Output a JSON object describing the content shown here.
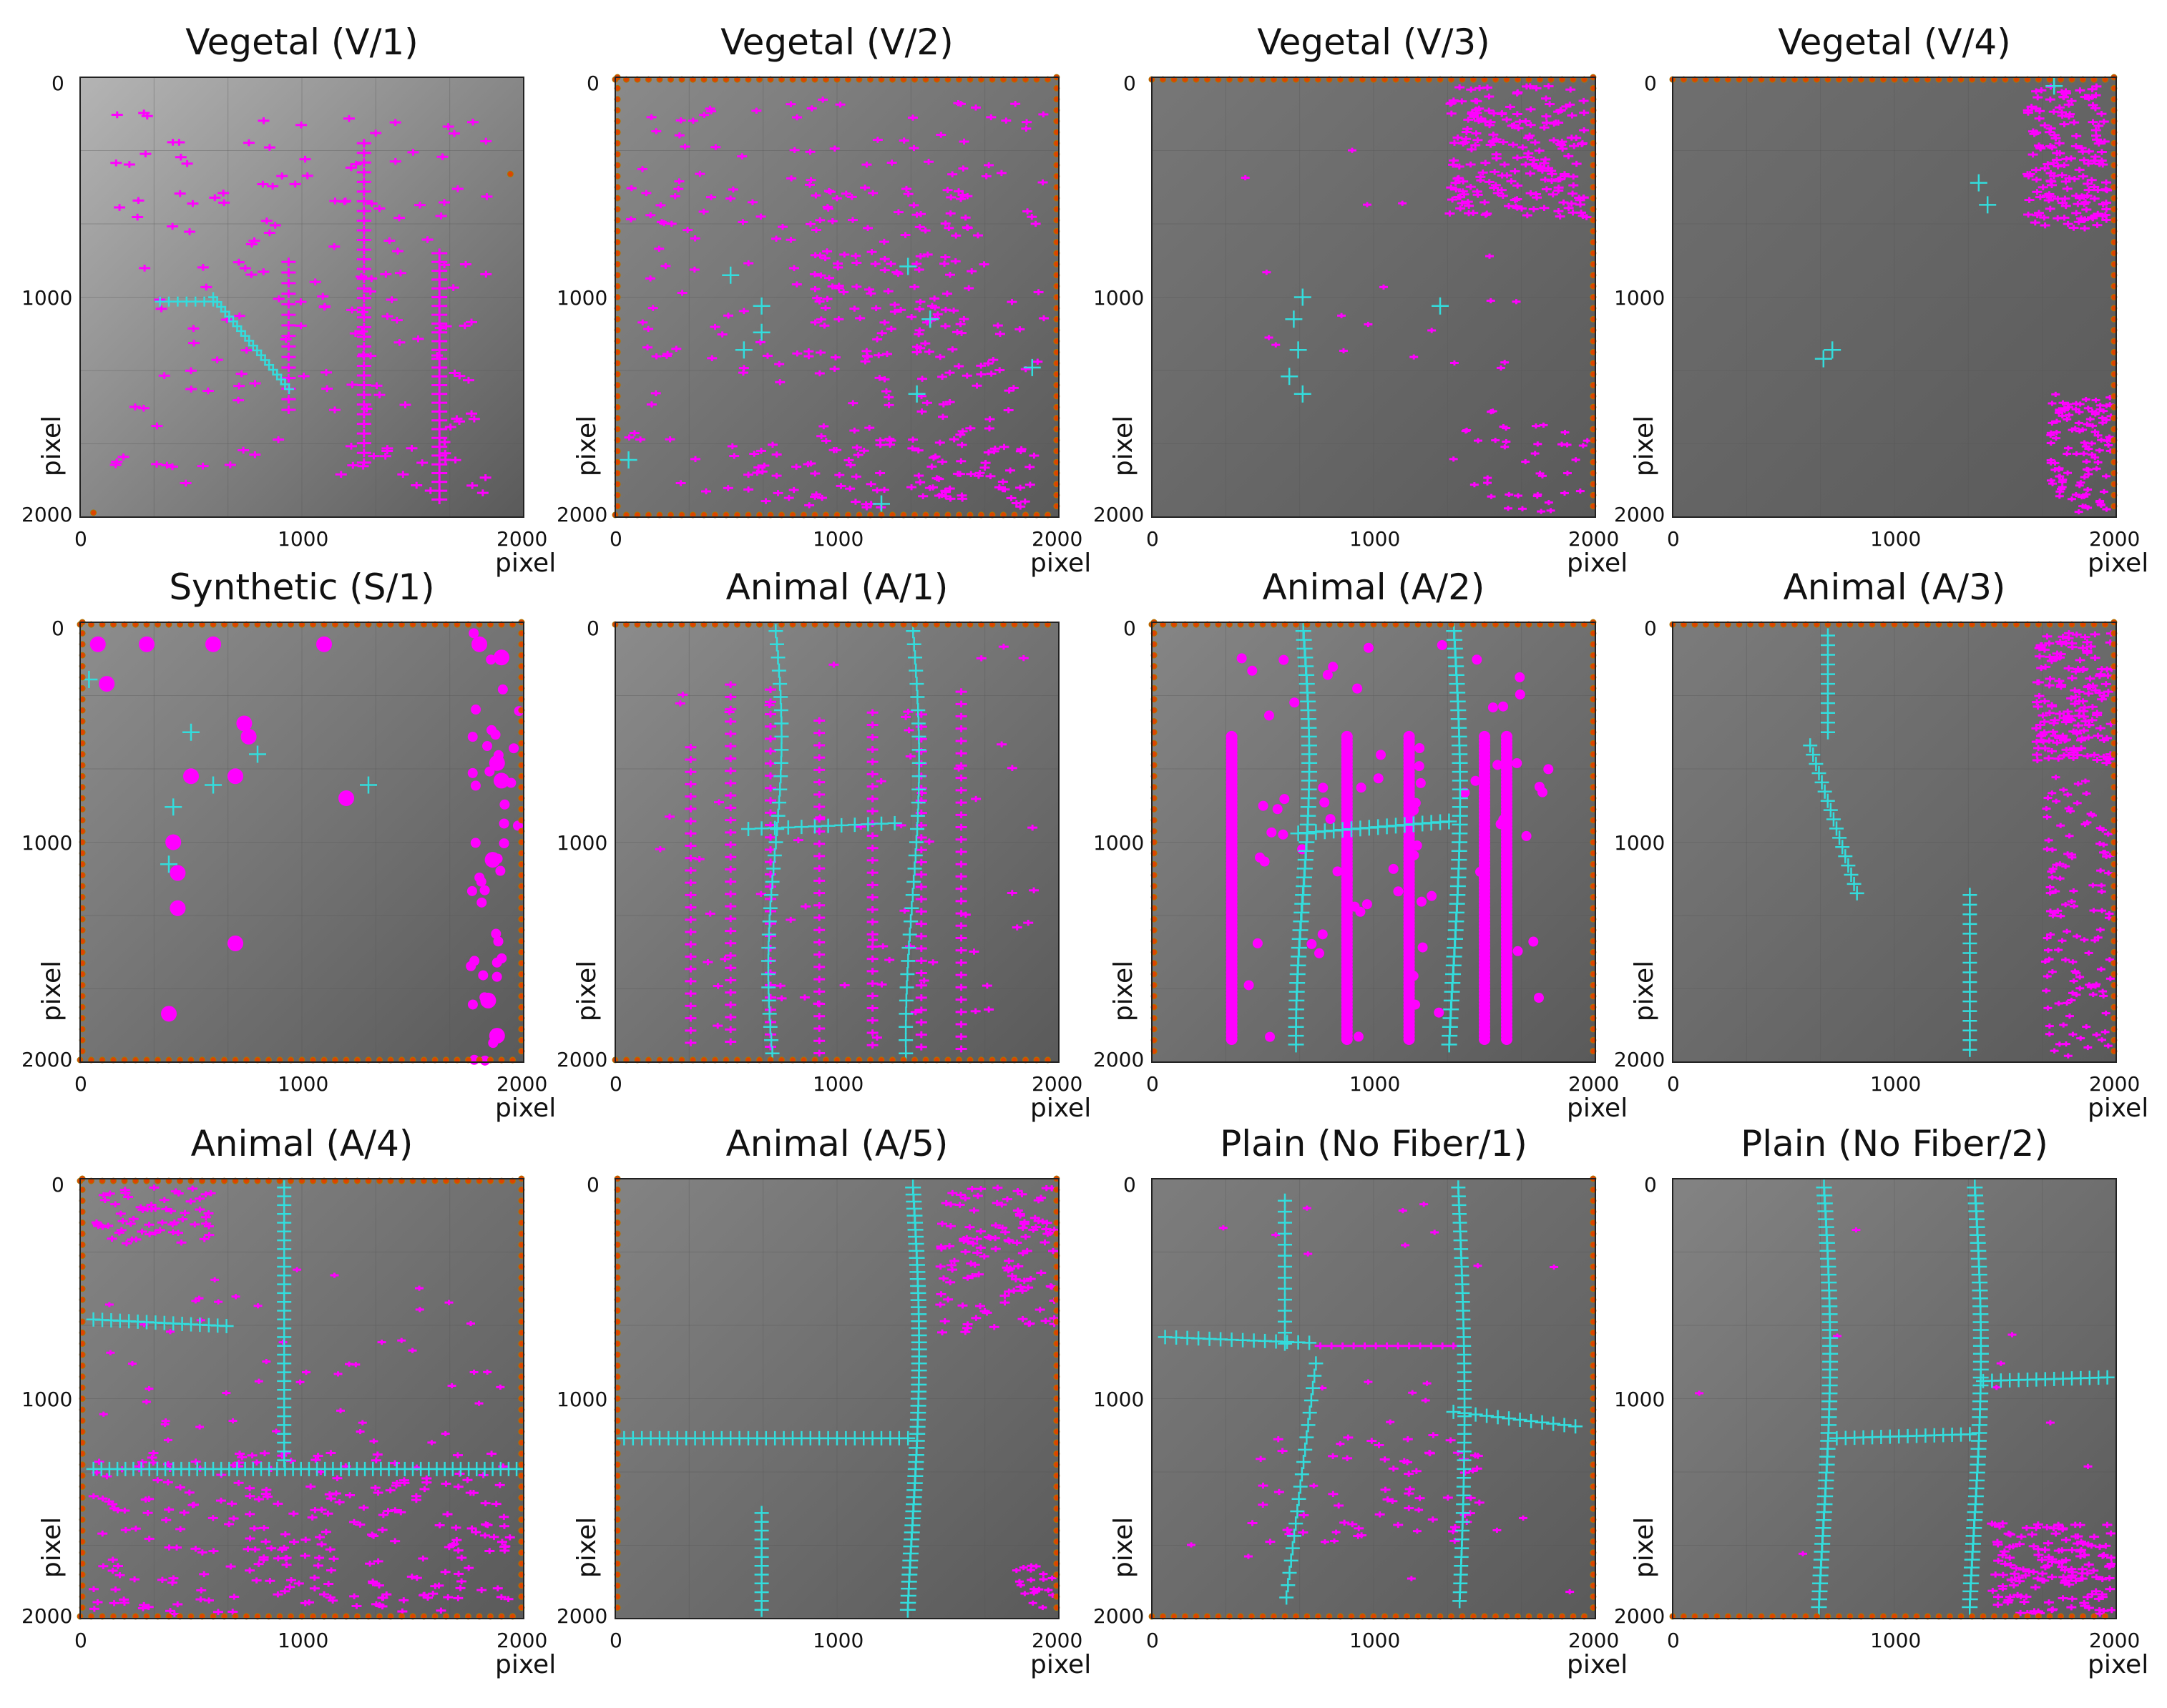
{
  "figure": {
    "axis_unit": "pixel",
    "tick_values": [
      "0",
      "1000",
      "2000"
    ],
    "legend_colors": {
      "detected_segment": "#ff00ff",
      "fiber_point": "#33dddd",
      "edge_point": "#dd4400"
    },
    "panels": [
      {
        "title": "Vegetal (V/1)",
        "scene": "v1"
      },
      {
        "title": "Vegetal (V/2)",
        "scene": "v2"
      },
      {
        "title": "Vegetal (V/3)",
        "scene": "v3"
      },
      {
        "title": "Vegetal (V/4)",
        "scene": "v4"
      },
      {
        "title": "Synthetic (S/1)",
        "scene": "s1"
      },
      {
        "title": "Animal (A/1)",
        "scene": "a1"
      },
      {
        "title": "Animal (A/2)",
        "scene": "a2"
      },
      {
        "title": "Animal (A/3)",
        "scene": "a3"
      },
      {
        "title": "Animal (A/4)",
        "scene": "a4"
      },
      {
        "title": "Animal (A/5)",
        "scene": "a5"
      },
      {
        "title": "Plain (No Fiber/1)",
        "scene": "n1"
      },
      {
        "title": "Plain (No Fiber/2)",
        "scene": "n2"
      }
    ]
  }
}
